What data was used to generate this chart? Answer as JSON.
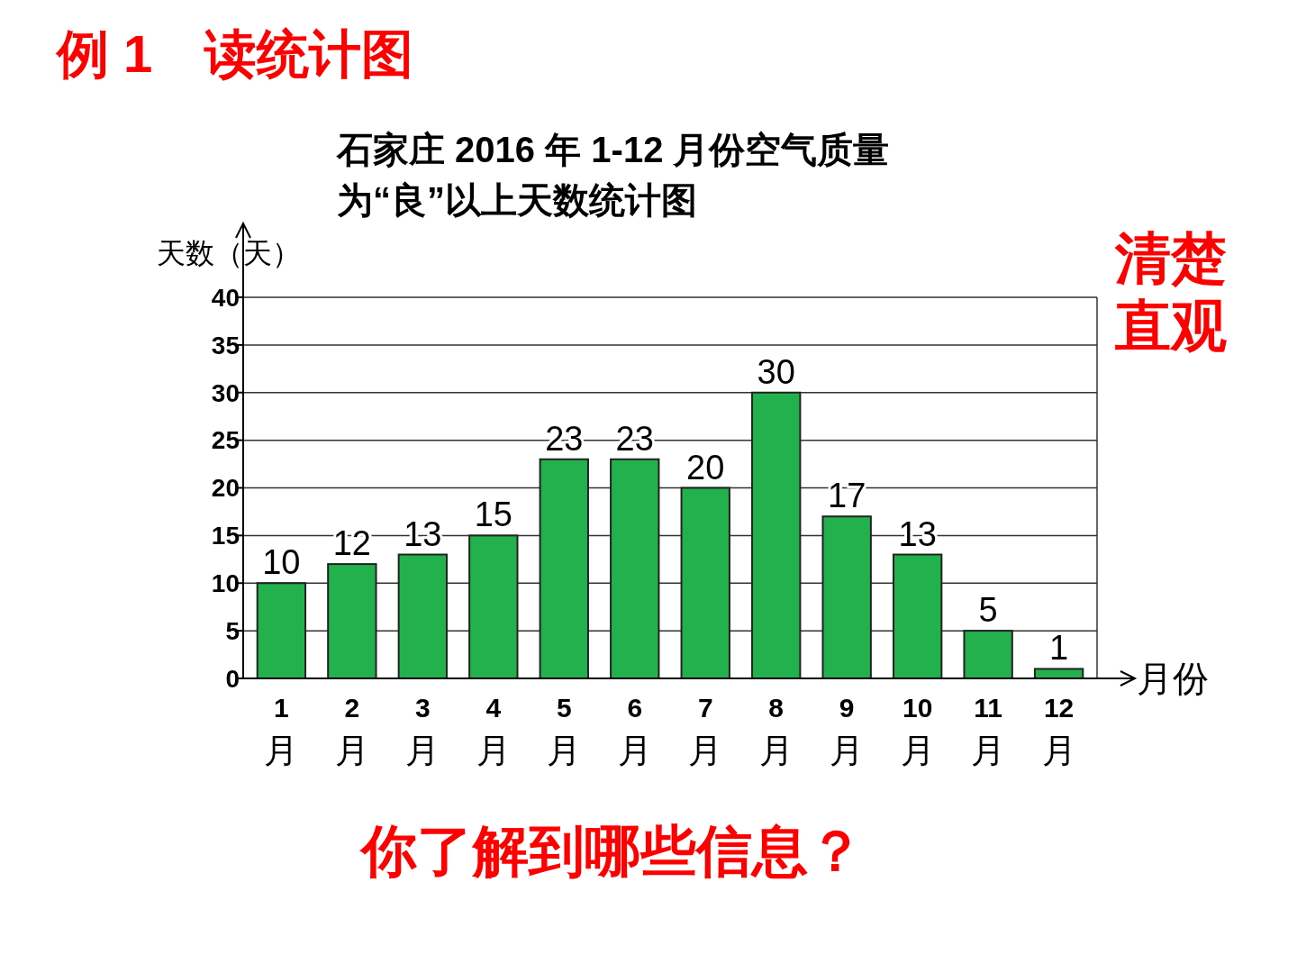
{
  "chart_data": {
    "type": "bar",
    "title": "石家庄 2016 年 1-12 月份空气质量",
    "subtitle": "为“良”以上天数统计图",
    "ylabel": "天数（天）",
    "xlabel": "月份",
    "categories": [
      "1月",
      "2月",
      "3月",
      "4月",
      "5月",
      "6月",
      "7月",
      "8月",
      "9月",
      "10月",
      "11月",
      "12月"
    ],
    "values": [
      10,
      12,
      13,
      15,
      23,
      23,
      20,
      30,
      17,
      13,
      5,
      1
    ],
    "color": "#22b14c",
    "ylim": [
      0,
      40
    ],
    "yticks": [
      0,
      5,
      10,
      15,
      20,
      25,
      30,
      35,
      40
    ],
    "grid": "y",
    "data_labels": true,
    "annotations": [
      "例 1　读统计图",
      "清楚直观",
      "你了解到哪些信息？"
    ]
  }
}
